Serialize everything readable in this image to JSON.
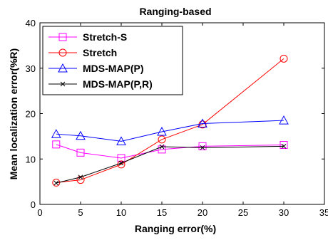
{
  "chart_data": {
    "type": "line",
    "title": "Ranging-based",
    "xlabel": "Ranging error(%)",
    "ylabel": "Mean localization error(%R)",
    "xlim": [
      0,
      35
    ],
    "ylim": [
      0,
      40
    ],
    "xticks": [
      0,
      5,
      10,
      15,
      20,
      25,
      30,
      35
    ],
    "yticks": [
      0,
      10,
      20,
      30,
      40
    ],
    "grid": false,
    "legend_position": "top-left",
    "series": [
      {
        "name": "Stretch-S",
        "color": "#ff00ff",
        "marker": "square",
        "x": [
          2,
          5,
          10,
          15,
          20,
          30
        ],
        "y": [
          13.2,
          11.4,
          10.2,
          12.1,
          12.8,
          13.1
        ]
      },
      {
        "name": "Stretch",
        "color": "#ff0000",
        "marker": "circle",
        "x": [
          2,
          5,
          10,
          15,
          20,
          30
        ],
        "y": [
          4.8,
          5.4,
          8.8,
          14.3,
          17.6,
          32.1
        ]
      },
      {
        "name": "MDS-MAP(P)",
        "color": "#0000ff",
        "marker": "triangle",
        "x": [
          2,
          5,
          10,
          15,
          20,
          30
        ],
        "y": [
          15.5,
          15.1,
          13.9,
          16.0,
          17.8,
          18.5
        ]
      },
      {
        "name": "MDS-MAP(P,R)",
        "color": "#000000",
        "marker": "x",
        "x": [
          2,
          5,
          10,
          15,
          20,
          30
        ],
        "y": [
          4.7,
          6.0,
          9.1,
          12.7,
          12.5,
          12.8
        ]
      }
    ]
  }
}
